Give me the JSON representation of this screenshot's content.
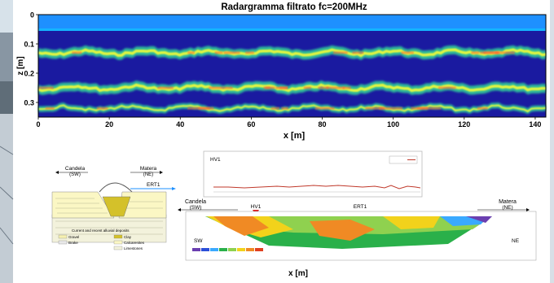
{
  "radargram": {
    "title": "Radargramma filtrato fc=200MHz",
    "xlabel": "x [m]",
    "ylabel": "z [m]",
    "x_ticks": [
      "0",
      "20",
      "40",
      "60",
      "80",
      "100",
      "120",
      "140"
    ],
    "y_ticks": [
      "0",
      "0.1",
      "0.2",
      "0.3"
    ]
  },
  "section_sketch": {
    "left_town": "Candela",
    "left_dir": "(SW)",
    "right_town": "Matera",
    "right_dir": "(NE)",
    "ert_label": "ERT1",
    "legend_title": "Current and recent alluvial deposits",
    "legend_items": [
      "Gravel",
      "Brake",
      "Clay",
      "Calcarenites",
      "Limestones"
    ]
  },
  "hv_panel": {
    "label": "HV1"
  },
  "ert_section": {
    "left_town": "Candela",
    "left_dir": "(SW)",
    "right_town": "Matera",
    "right_dir": "(NE)",
    "hv_marker": "HV1",
    "ert_label": "ERT1",
    "left_corner": "SW",
    "right_corner": "NE"
  },
  "bottom_xlabel": "x [m]",
  "chart_data": [
    {
      "type": "heatmap",
      "title": "Radargramma filtrato fc=200MHz",
      "xlabel": "x [m]",
      "ylabel": "z [m]",
      "xlim": [
        0,
        143
      ],
      "ylim": [
        0,
        0.35
      ],
      "y_reversed": true,
      "x_ticks": [
        0,
        20,
        40,
        60,
        80,
        100,
        120,
        140
      ],
      "y_ticks": [
        0,
        0.1,
        0.2,
        0.3
      ],
      "reflector_bands_depth": [
        0.13,
        0.25,
        0.32
      ],
      "colors": {
        "background": "#1a1aa0",
        "surface": "#1e90ff",
        "mid": "#33cc99",
        "high": "#ffff33",
        "peak": "#ff6633"
      }
    },
    {
      "type": "line",
      "title": "HV1",
      "colors": {
        "series": "#c0392b"
      }
    }
  ]
}
